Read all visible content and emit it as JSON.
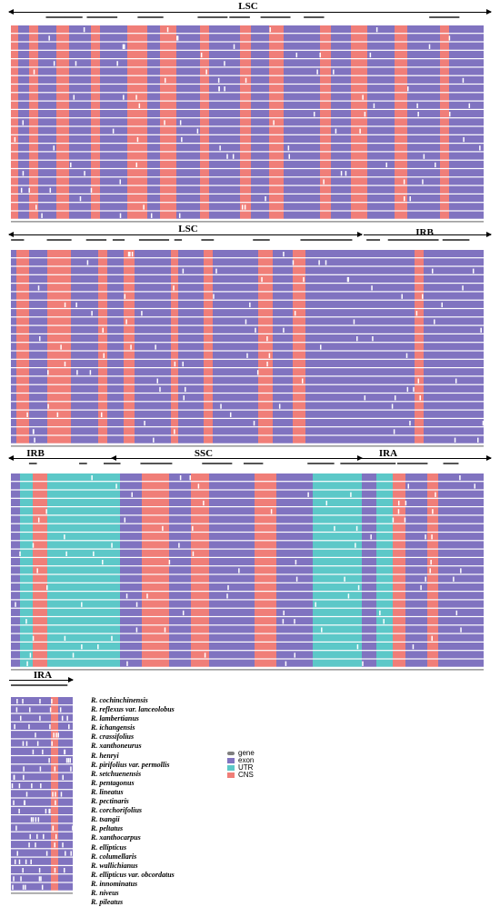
{
  "regions": {
    "p1_top": "LSC",
    "p2_left": "LSC",
    "p2_right": "IRB",
    "p3_left": "IRB",
    "p3_mid": "SSC",
    "p3_right": "IRA",
    "p4_top": "IRA"
  },
  "legend": [
    {
      "label": "gene",
      "color": "#7f7f7f"
    },
    {
      "label": "exon",
      "color": "#8073c0"
    },
    {
      "label": "UTR",
      "color": "#5cc8c8"
    },
    {
      "label": "CNS",
      "color": "#f07e78"
    }
  ],
  "species": [
    "R. cochinchinensis",
    "R. reflexus var. lanceolobus",
    "R. lambertianus",
    "R. ichangensis",
    "R. crassifolius",
    "R. xanthoneurus",
    "R. henryi",
    "R. pirifolius var. permollis",
    "R. setchuenensis",
    "R. pentagonus",
    "R. lineatus",
    "R. pectinaris",
    "R. corchorifolius",
    "R. tsangii",
    "R. peltatus",
    "R. xanthocarpus",
    "R. ellipticus",
    "R. columellaris",
    "R. wallichianus",
    "R. ellipticus var. obcordatus",
    "R. innominatus",
    "R. niveus",
    "R. pileatus"
  ],
  "colors": {
    "exon": "#8073c0",
    "utr": "#5cc8c8",
    "cns": "#f07e78",
    "bg": "#ffffff"
  }
}
